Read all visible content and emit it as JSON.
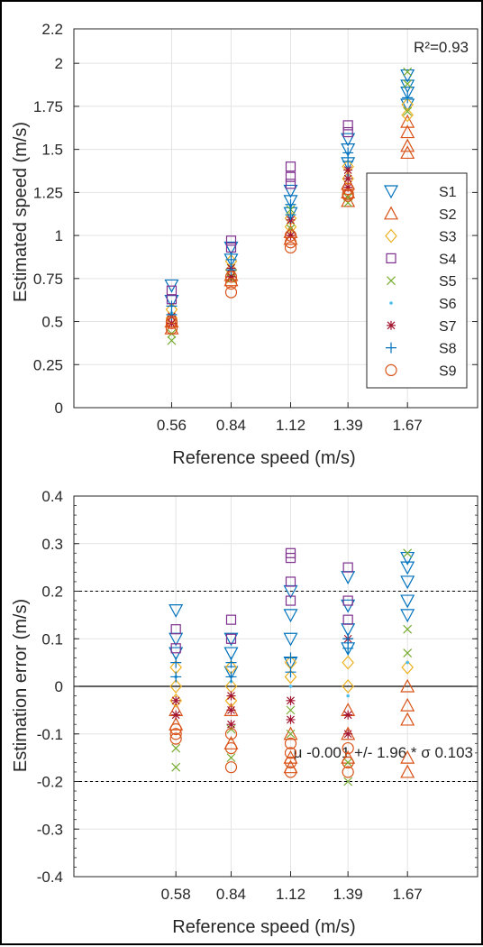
{
  "colors": {
    "S1": "#0072BD",
    "S2": "#D95319",
    "S3": "#EDB120",
    "S4": "#7E2F8E",
    "S5": "#77AC30",
    "S6": "#4DBEEE",
    "S7": "#A2142F",
    "S8": "#0072BD",
    "S9": "#D95319"
  },
  "chart_data": [
    {
      "type": "scatter",
      "xlabel": "Reference speed (m/s)",
      "ylabel": "Estimated speed (m/s)",
      "x_ticks": [
        "0.56",
        "0.84",
        "1.12",
        "1.39",
        "1.67"
      ],
      "y_ticks": [
        "0",
        "0.25",
        "0.5",
        "0.75",
        "1",
        "1.25",
        "1.5",
        "1.75",
        "2",
        "2.2"
      ],
      "ylim": [
        0,
        2.2
      ],
      "xlim": [
        0.1,
        2.0
      ],
      "grid": true,
      "legend_position": "right",
      "annotation": "R²=0.93",
      "series": [
        {
          "name": "S1",
          "marker": "triangle-down",
          "x": [
            0.56,
            0.56,
            0.84,
            0.84,
            1.12,
            1.12,
            1.12,
            1.39,
            1.39,
            1.39,
            1.67,
            1.67,
            1.67,
            1.67
          ],
          "y": [
            0.71,
            0.62,
            0.93,
            0.86,
            1.26,
            1.2,
            1.13,
            1.56,
            1.5,
            1.42,
            1.93,
            1.87,
            1.83,
            1.76
          ]
        },
        {
          "name": "S2",
          "marker": "triangle-up",
          "x": [
            0.56,
            0.56,
            0.84,
            0.84,
            1.12,
            1.12,
            1.39,
            1.39,
            1.39,
            1.67,
            1.67,
            1.67,
            1.67
          ],
          "y": [
            0.5,
            0.46,
            0.77,
            0.74,
            1.02,
            0.98,
            1.3,
            1.25,
            1.2,
            1.66,
            1.6,
            1.52,
            1.48
          ]
        },
        {
          "name": "S3",
          "marker": "diamond",
          "x": [
            0.56,
            0.56,
            0.84,
            0.84,
            1.12,
            1.12,
            1.39,
            1.39,
            1.67,
            1.67
          ],
          "y": [
            0.57,
            0.52,
            0.85,
            0.8,
            1.1,
            1.05,
            1.4,
            1.33,
            1.76,
            1.7
          ]
        },
        {
          "name": "S4",
          "marker": "square",
          "x": [
            0.56,
            0.56,
            0.84,
            0.84,
            1.12,
            1.12,
            1.12,
            1.39,
            1.39
          ],
          "y": [
            0.68,
            0.63,
            0.97,
            0.93,
            1.4,
            1.34,
            1.3,
            1.64,
            1.6
          ]
        },
        {
          "name": "S5",
          "marker": "x",
          "x": [
            0.56,
            0.56,
            0.84,
            0.84,
            1.12,
            1.12,
            1.39,
            1.39,
            1.67,
            1.67,
            1.67
          ],
          "y": [
            0.39,
            0.43,
            0.81,
            0.75,
            1.15,
            1.04,
            1.22,
            1.19,
            1.95,
            1.88,
            1.72
          ]
        },
        {
          "name": "S6",
          "marker": "dot",
          "x": [
            0.56,
            0.84,
            1.12,
            1.39,
            1.67
          ],
          "y": [
            0.55,
            0.82,
            1.08,
            1.35,
            1.8
          ]
        },
        {
          "name": "S7",
          "marker": "asterisk",
          "x": [
            0.56,
            0.56,
            0.84,
            0.84,
            1.12,
            1.12,
            1.39,
            1.39,
            1.39
          ],
          "y": [
            0.53,
            0.49,
            0.81,
            0.76,
            1.09,
            1.0,
            1.38,
            1.33,
            1.28
          ]
        },
        {
          "name": "S8",
          "marker": "plus",
          "x": [
            0.56,
            0.56,
            0.84,
            0.84,
            1.12,
            1.12,
            1.39,
            1.39,
            1.67
          ],
          "y": [
            0.59,
            0.54,
            0.86,
            0.8,
            1.18,
            1.12,
            1.48,
            1.43,
            1.8
          ]
        },
        {
          "name": "S9",
          "marker": "circle",
          "x": [
            0.56,
            0.56,
            0.56,
            0.84,
            0.84,
            0.84,
            1.12,
            1.12,
            1.12,
            1.39,
            1.39,
            1.39
          ],
          "y": [
            0.49,
            0.46,
            0.5,
            0.76,
            0.72,
            0.67,
            1.0,
            0.96,
            0.93,
            1.27,
            1.23,
            1.24
          ]
        }
      ]
    },
    {
      "type": "scatter",
      "xlabel": "Reference speed (m/s)",
      "ylabel": "Estimation error (m/s)",
      "x_ticks": [
        "0.58",
        "0.84",
        "1.12",
        "1.39",
        "1.67"
      ],
      "y_ticks": [
        "-0.4",
        "-0.3",
        "-0.2",
        "-0.1",
        "0",
        "0.1",
        "0.2",
        "0.3",
        "0.4"
      ],
      "ylim": [
        -0.4,
        0.4
      ],
      "xlim": [
        0.1,
        2.0
      ],
      "grid": true,
      "reference_lines": {
        "zero": 0,
        "upper_limit": 0.2,
        "lower_limit": -0.2
      },
      "annotation": "μ -0.001 +/- 1.96 * σ 0.103",
      "series": [
        {
          "name": "S1",
          "marker": "triangle-down",
          "x": [
            0.58,
            0.58,
            0.58,
            0.84,
            0.84,
            0.84,
            1.12,
            1.12,
            1.12,
            1.12,
            1.39,
            1.39,
            1.39,
            1.39,
            1.67,
            1.67,
            1.67,
            1.67,
            1.67
          ],
          "y": [
            0.16,
            0.1,
            0.07,
            0.1,
            0.07,
            0.03,
            0.2,
            0.15,
            0.1,
            0.05,
            0.23,
            0.17,
            0.12,
            0.08,
            0.27,
            0.25,
            0.22,
            0.18,
            0.15
          ]
        },
        {
          "name": "S2",
          "marker": "triangle-up",
          "x": [
            0.58,
            0.58,
            0.84,
            0.84,
            1.12,
            1.12,
            1.12,
            1.39,
            1.39,
            1.39,
            1.67,
            1.67,
            1.67,
            1.67,
            1.67
          ],
          "y": [
            -0.05,
            -0.08,
            -0.05,
            -0.12,
            -0.1,
            -0.15,
            -0.17,
            -0.05,
            -0.1,
            -0.15,
            0.0,
            -0.04,
            -0.07,
            -0.15,
            -0.18
          ]
        },
        {
          "name": "S3",
          "marker": "diamond",
          "x": [
            0.58,
            0.58,
            0.58,
            0.84,
            0.84,
            0.84,
            1.12,
            1.12,
            1.39,
            1.39,
            1.67
          ],
          "y": [
            0.04,
            0.0,
            -0.03,
            0.04,
            0.0,
            -0.03,
            0.05,
            0.02,
            0.05,
            0.0,
            0.04
          ]
        },
        {
          "name": "S4",
          "marker": "square",
          "x": [
            0.58,
            0.58,
            0.84,
            0.84,
            1.12,
            1.12,
            1.12,
            1.12,
            1.39,
            1.39,
            1.39
          ],
          "y": [
            0.12,
            0.08,
            0.14,
            0.1,
            0.28,
            0.27,
            0.22,
            0.18,
            0.25,
            0.18,
            0.14
          ]
        },
        {
          "name": "S5",
          "marker": "x",
          "x": [
            0.58,
            0.58,
            0.84,
            0.84,
            1.12,
            1.12,
            1.39,
            1.39,
            1.67,
            1.67,
            1.67
          ],
          "y": [
            -0.17,
            -0.13,
            -0.09,
            -0.15,
            -0.05,
            -0.1,
            -0.2,
            -0.16,
            0.28,
            0.12,
            0.07
          ]
        },
        {
          "name": "S6",
          "marker": "dot",
          "x": [
            0.58,
            0.84,
            1.12,
            1.39,
            1.67
          ],
          "y": [
            0.02,
            0.01,
            0.0,
            -0.02,
            0.05
          ]
        },
        {
          "name": "S7",
          "marker": "asterisk",
          "x": [
            0.58,
            0.58,
            0.84,
            0.84,
            0.84,
            1.12,
            1.12,
            1.39,
            1.39,
            1.39
          ],
          "y": [
            -0.03,
            -0.06,
            -0.02,
            -0.05,
            -0.08,
            -0.03,
            -0.07,
            -0.06,
            -0.1,
            0.1
          ]
        },
        {
          "name": "S8",
          "marker": "plus",
          "x": [
            0.58,
            0.58,
            0.84,
            0.84,
            1.12,
            1.12,
            1.39,
            1.39
          ],
          "y": [
            0.05,
            0.02,
            0.05,
            0.02,
            0.06,
            0.03,
            0.1,
            0.08
          ]
        },
        {
          "name": "S9",
          "marker": "circle",
          "x": [
            0.58,
            0.58,
            0.58,
            0.84,
            0.84,
            0.84,
            1.12,
            1.12,
            1.12,
            1.12,
            1.39,
            1.39,
            1.39
          ],
          "y": [
            -0.09,
            -0.1,
            -0.11,
            -0.1,
            -0.13,
            -0.17,
            -0.12,
            -0.14,
            -0.16,
            -0.18,
            -0.13,
            -0.16,
            -0.18
          ]
        }
      ]
    }
  ]
}
